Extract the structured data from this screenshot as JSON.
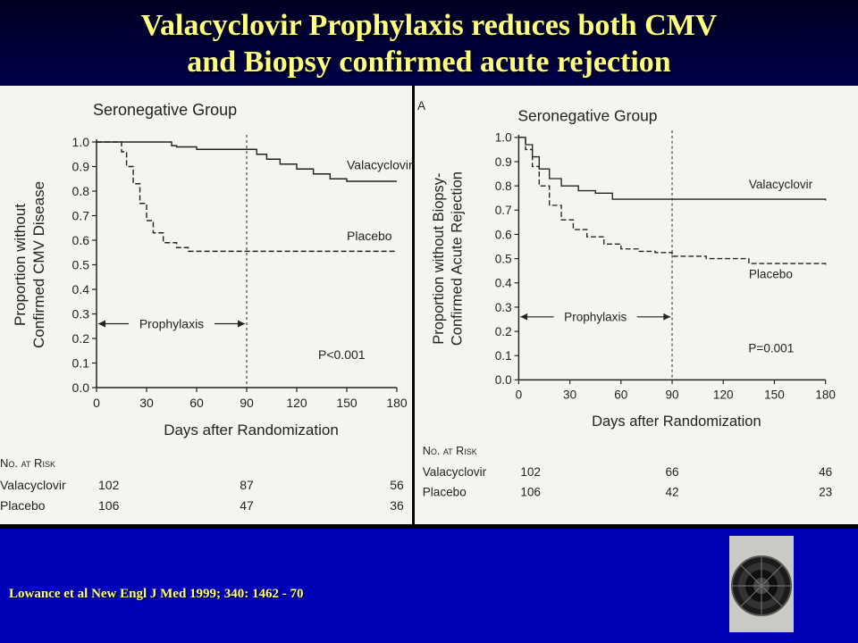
{
  "slide": {
    "title_line1": "Valacyclovir Prophylaxis reduces both CMV",
    "title_line2": "and  Biopsy confirmed acute rejection",
    "citation": "Lowance et al New Engl J Med 1999; 340: 1462 - 70"
  },
  "colors": {
    "background": "#0000b8",
    "title": "#ffff80",
    "figure_bg": "#f4f4f1",
    "ink": "#222222"
  },
  "chart_data": [
    {
      "type": "line",
      "panel_label": "",
      "title": "Seronegative Group",
      "xlabel": "Days after Randomization",
      "ylabel_lines": [
        "Proportion without",
        "Confirmed CMV Disease"
      ],
      "xlim": [
        0,
        180
      ],
      "ylim": [
        0,
        1
      ],
      "xticks": [
        0,
        30,
        60,
        90,
        120,
        150,
        180
      ],
      "yticks": [
        "0.0",
        "0.1",
        "0.2",
        "0.3",
        "0.4",
        "0.5",
        "0.6",
        "0.7",
        "0.8",
        "0.9",
        "1.0"
      ],
      "vline_x": 90,
      "prophylaxis_label": "Prophylaxis",
      "prophylaxis_range": [
        0,
        90
      ],
      "prophylaxis_y": 0.26,
      "p_value": "P<0.001",
      "series": [
        {
          "name": "Valacyclovir",
          "dashed": false,
          "points": [
            [
              0,
              1.0
            ],
            [
              38,
              1.0
            ],
            [
              45,
              0.985
            ],
            [
              48,
              0.98
            ],
            [
              60,
              0.97
            ],
            [
              90,
              0.97
            ],
            [
              96,
              0.95
            ],
            [
              102,
              0.93
            ],
            [
              110,
              0.91
            ],
            [
              120,
              0.89
            ],
            [
              130,
              0.87
            ],
            [
              140,
              0.85
            ],
            [
              150,
              0.84
            ],
            [
              180,
              0.84
            ]
          ]
        },
        {
          "name": "Placebo",
          "dashed": true,
          "points": [
            [
              0,
              1.0
            ],
            [
              12,
              1.0
            ],
            [
              15,
              0.96
            ],
            [
              18,
              0.9
            ],
            [
              22,
              0.83
            ],
            [
              26,
              0.75
            ],
            [
              30,
              0.68
            ],
            [
              34,
              0.63
            ],
            [
              40,
              0.59
            ],
            [
              48,
              0.57
            ],
            [
              55,
              0.555
            ],
            [
              60,
              0.555
            ],
            [
              180,
              0.555
            ]
          ]
        }
      ],
      "label_positions": {
        "Valacyclovir": [
          150,
          0.89
        ],
        "Placebo": [
          150,
          0.6
        ]
      },
      "risk_table": {
        "header": "No. at Risk",
        "rows": [
          {
            "label": "Valacyclovir",
            "values": [
              "102",
              "87",
              "56"
            ]
          },
          {
            "label": "Placebo",
            "values": [
              "106",
              "47",
              "36"
            ]
          }
        ]
      }
    },
    {
      "type": "line",
      "panel_label": "A",
      "title": "Seronegative Group",
      "xlabel": "Days after Randomization",
      "ylabel_lines": [
        "Proportion without Biopsy-",
        "Confirmed Acute Rejection"
      ],
      "xlim": [
        0,
        180
      ],
      "ylim": [
        0,
        1
      ],
      "xticks": [
        0,
        30,
        60,
        90,
        120,
        150,
        180
      ],
      "yticks": [
        "0.0",
        "0.1",
        "0.2",
        "0.3",
        "0.4",
        "0.5",
        "0.6",
        "0.7",
        "0.8",
        "0.9",
        "1.0"
      ],
      "vline_x": 90,
      "prophylaxis_label": "Prophylaxis",
      "prophylaxis_range": [
        0,
        90
      ],
      "prophylaxis_y": 0.26,
      "p_value": "P=0.001",
      "series": [
        {
          "name": "Valacyclovir",
          "dashed": false,
          "points": [
            [
              0,
              1.0
            ],
            [
              4,
              0.97
            ],
            [
              8,
              0.92
            ],
            [
              12,
              0.87
            ],
            [
              18,
              0.83
            ],
            [
              25,
              0.8
            ],
            [
              35,
              0.78
            ],
            [
              45,
              0.77
            ],
            [
              55,
              0.745
            ],
            [
              180,
              0.74
            ]
          ]
        },
        {
          "name": "Placebo",
          "dashed": true,
          "points": [
            [
              0,
              1.0
            ],
            [
              4,
              0.95
            ],
            [
              8,
              0.88
            ],
            [
              12,
              0.8
            ],
            [
              18,
              0.72
            ],
            [
              25,
              0.66
            ],
            [
              32,
              0.62
            ],
            [
              40,
              0.59
            ],
            [
              50,
              0.56
            ],
            [
              60,
              0.54
            ],
            [
              70,
              0.53
            ],
            [
              80,
              0.525
            ],
            [
              90,
              0.51
            ],
            [
              110,
              0.5
            ],
            [
              130,
              0.5
            ],
            [
              135,
              0.48
            ],
            [
              180,
              0.475
            ]
          ]
        }
      ],
      "label_positions": {
        "Valacyclovir": [
          135,
          0.79
        ],
        "Placebo": [
          135,
          0.42
        ]
      },
      "risk_table": {
        "header": "No. at Risk",
        "rows": [
          {
            "label": "Valacyclovir",
            "values": [
              "102",
              "66",
              "46"
            ]
          },
          {
            "label": "Placebo",
            "values": [
              "106",
              "42",
              "23"
            ]
          }
        ]
      }
    }
  ]
}
